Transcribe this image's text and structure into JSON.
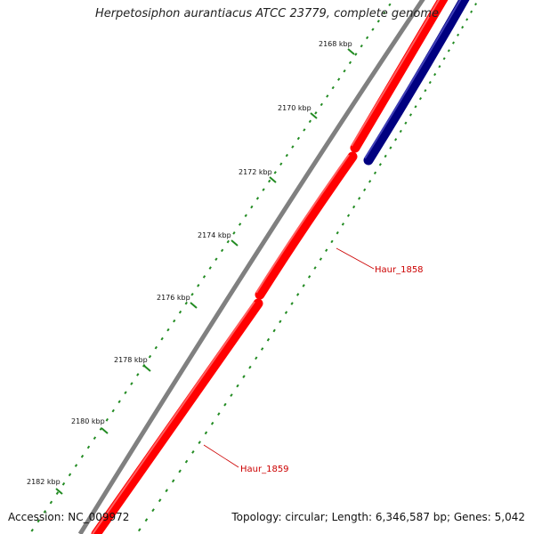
{
  "title": "Herpetosiphon aurantiacus ATCC 23779, complete genome",
  "footer": {
    "accession": "Accession: NC_009972",
    "summary": "Topology: circular; Length: 6,346,587 bp; Genes: 5,042"
  },
  "colors": {
    "backbone": "#808080",
    "gene_forward": "#ff0000",
    "gene_reverse": "#000080",
    "tick": "#228b22",
    "gene_label": "#cc0000"
  },
  "ticks": [
    {
      "label": "2168 kbp"
    },
    {
      "label": "2170 kbp"
    },
    {
      "label": "2172 kbp"
    },
    {
      "label": "2174 kbp"
    },
    {
      "label": "2176 kbp"
    },
    {
      "label": "2178 kbp"
    },
    {
      "label": "2180 kbp"
    },
    {
      "label": "2182 kbp"
    }
  ],
  "genes": [
    {
      "name": "Haur_1858"
    },
    {
      "name": "Haur_1859"
    }
  ]
}
